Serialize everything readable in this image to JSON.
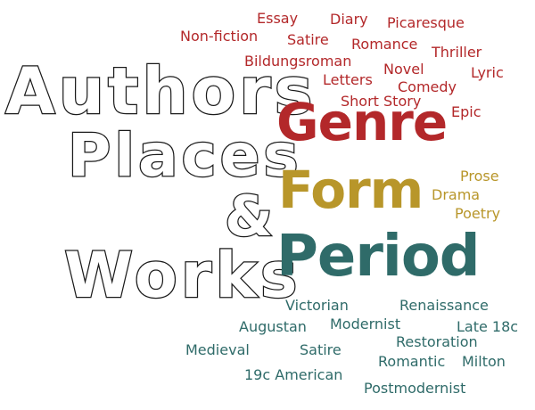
{
  "colors": {
    "outline_stroke": "#1a1a1a",
    "genre": "#b3282a",
    "form": "#b8962a",
    "period": "#2f6b69"
  },
  "main_words": {
    "authors": "Authors",
    "places": "Places",
    "ampersand": "&",
    "works": "Works"
  },
  "categories": {
    "genre": "Genre",
    "form": "Form",
    "period": "Period"
  },
  "genre_words": [
    "Essay",
    "Diary",
    "Picaresque",
    "Non-fiction",
    "Satire",
    "Romance",
    "Thriller",
    "Bildungsroman",
    "Novel",
    "Lyric",
    "Letters",
    "Comedy",
    "Short Story",
    "Epic"
  ],
  "form_words": [
    "Prose",
    "Drama",
    "Poetry"
  ],
  "period_words": [
    "Victorian",
    "Renaissance",
    "Augustan",
    "Modernist",
    "Late 18c",
    "Restoration",
    "Medieval",
    "Satire",
    "Romantic",
    "Milton",
    "19c American",
    "Postmodernist"
  ]
}
